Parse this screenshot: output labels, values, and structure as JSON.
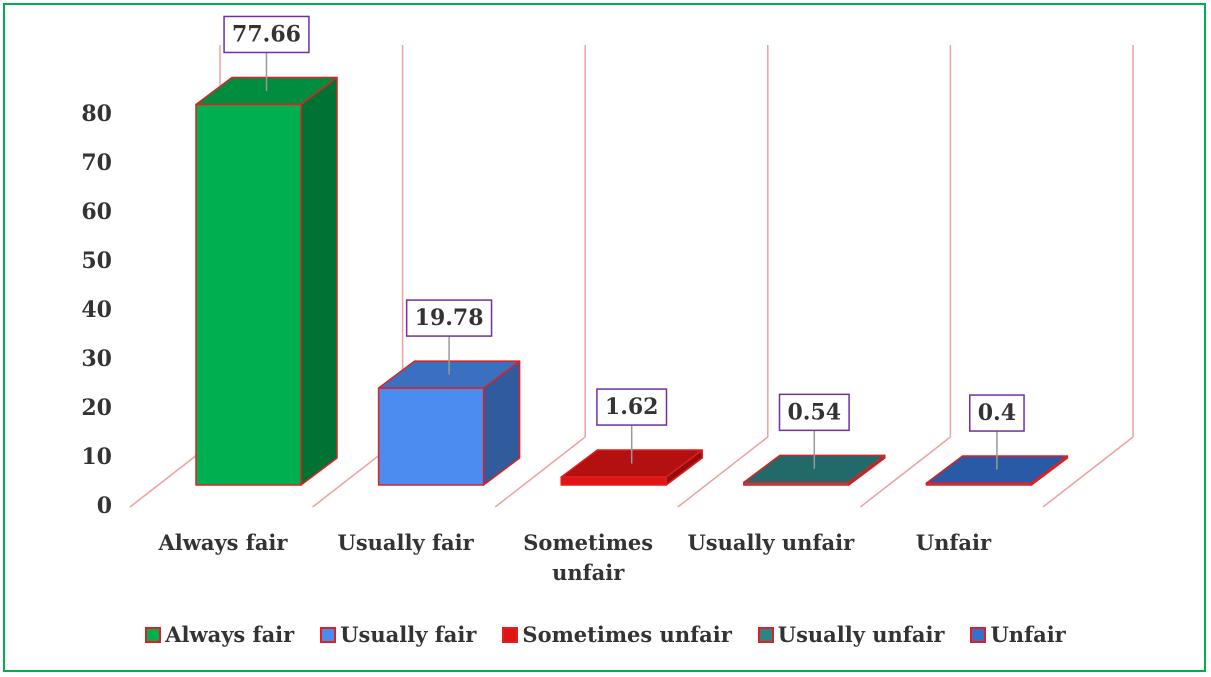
{
  "chart_data": {
    "type": "bar3d",
    "categories": [
      "Always fair",
      "Usually fair",
      "Sometimes unfair",
      "Usually unfair",
      "Unfair"
    ],
    "values": [
      77.66,
      19.78,
      1.62,
      0.54,
      0.4
    ],
    "colors": [
      "#00b050",
      "#4a8cf0",
      "#e01414",
      "#2a8585",
      "#3370d0"
    ],
    "ylim": [
      0,
      80
    ],
    "yticks": [
      0,
      10,
      20,
      30,
      40,
      50,
      60,
      70,
      80
    ],
    "legend": "bottom"
  }
}
